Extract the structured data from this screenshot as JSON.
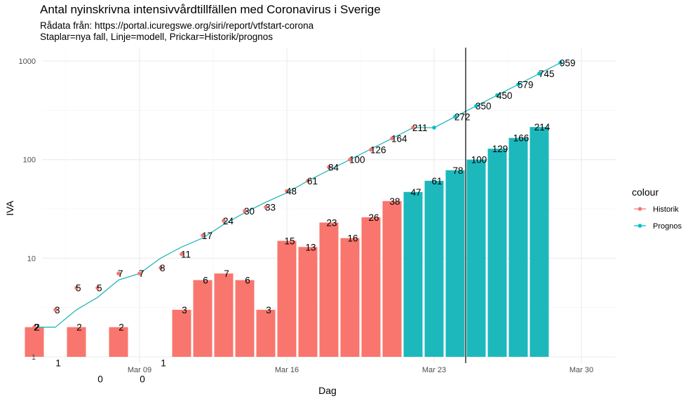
{
  "chart_data": {
    "type": "bar",
    "title": "Antal nyinskrivna intensivvårdtillfällen med Coronavirus i Sverige",
    "subtitle_lines": [
      "Rådata från: https://portal.icuregswe.org/siri/report/vtfstart-corona",
      "Staplar=nya fall, Linje=modell, Prickar=Historik/prognos"
    ],
    "xlabel": "Dag",
    "ylabel": "IVA",
    "y_scale": "log10",
    "ylim": [
      1,
      1000
    ],
    "y_ticks": [
      1,
      10,
      100,
      1000
    ],
    "y_tick_labels": [
      "1",
      "10",
      "100",
      "1000"
    ],
    "x_ticks": [
      "2020-03-09",
      "2020-03-16",
      "2020-03-23",
      "2020-03-30"
    ],
    "x_tick_labels": [
      "Mar 09",
      "Mar 16",
      "Mar 23",
      "Mar 30"
    ],
    "x_range": [
      "2020-03-03",
      "2020-03-31"
    ],
    "vline_date": "2020-03-25",
    "legend": {
      "title": "colour",
      "position": "right",
      "entries": [
        {
          "name": "Historik",
          "color": "#F8766D"
        },
        {
          "name": "Prognos",
          "color": "#00BFC4"
        }
      ]
    },
    "colors": {
      "historik": "#F8766D",
      "prognos": "#1CB8BC",
      "line": "#26B7BA"
    },
    "grid": true,
    "bars": [
      {
        "date": "2020-03-04",
        "value": 2,
        "label": "2",
        "series": "Historik"
      },
      {
        "date": "2020-03-05",
        "value": 1,
        "label": "1",
        "series": "Historik"
      },
      {
        "date": "2020-03-06",
        "value": 2,
        "label": "2",
        "series": "Historik"
      },
      {
        "date": "2020-03-07",
        "value": 0,
        "label": "0",
        "series": "Historik"
      },
      {
        "date": "2020-03-08",
        "value": 2,
        "label": "2",
        "series": "Historik"
      },
      {
        "date": "2020-03-09",
        "value": 0,
        "label": "0",
        "series": "Historik"
      },
      {
        "date": "2020-03-10",
        "value": 1,
        "label": "1",
        "series": "Historik"
      },
      {
        "date": "2020-03-11",
        "value": 3,
        "label": "3",
        "series": "Historik"
      },
      {
        "date": "2020-03-12",
        "value": 6,
        "label": "6",
        "series": "Historik"
      },
      {
        "date": "2020-03-13",
        "value": 7,
        "label": "7",
        "series": "Historik"
      },
      {
        "date": "2020-03-14",
        "value": 6,
        "label": "6",
        "series": "Historik"
      },
      {
        "date": "2020-03-15",
        "value": 3,
        "label": "3",
        "series": "Historik"
      },
      {
        "date": "2020-03-16",
        "value": 15,
        "label": "15",
        "series": "Historik"
      },
      {
        "date": "2020-03-17",
        "value": 13,
        "label": "13",
        "series": "Historik"
      },
      {
        "date": "2020-03-18",
        "value": 23,
        "label": "23",
        "series": "Historik"
      },
      {
        "date": "2020-03-19",
        "value": 16,
        "label": "16",
        "series": "Historik"
      },
      {
        "date": "2020-03-20",
        "value": 26,
        "label": "26",
        "series": "Historik"
      },
      {
        "date": "2020-03-21",
        "value": 38,
        "label": "38",
        "series": "Historik"
      },
      {
        "date": "2020-03-22",
        "value": 47,
        "label": "47",
        "series": "Prognos"
      },
      {
        "date": "2020-03-23",
        "value": 61,
        "label": "61",
        "series": "Prognos"
      },
      {
        "date": "2020-03-24",
        "value": 78,
        "label": "78",
        "series": "Prognos"
      },
      {
        "date": "2020-03-25",
        "value": 100,
        "label": "100",
        "series": "Prognos"
      },
      {
        "date": "2020-03-26",
        "value": 129,
        "label": "129",
        "series": "Prognos"
      },
      {
        "date": "2020-03-27",
        "value": 166,
        "label": "166",
        "series": "Prognos"
      },
      {
        "date": "2020-03-28",
        "value": 214,
        "label": "214",
        "series": "Prognos"
      }
    ],
    "points": [
      {
        "date": "2020-03-04",
        "value": 2,
        "label": "2",
        "series": "Historik"
      },
      {
        "date": "2020-03-05",
        "value": 3,
        "label": "3",
        "series": "Historik"
      },
      {
        "date": "2020-03-06",
        "value": 5,
        "label": "5",
        "series": "Historik"
      },
      {
        "date": "2020-03-07",
        "value": 5,
        "label": "5",
        "series": "Historik"
      },
      {
        "date": "2020-03-08",
        "value": 7,
        "label": "7",
        "series": "Historik"
      },
      {
        "date": "2020-03-09",
        "value": 7,
        "label": "7",
        "series": "Historik"
      },
      {
        "date": "2020-03-10",
        "value": 8,
        "label": "8",
        "series": "Historik"
      },
      {
        "date": "2020-03-11",
        "value": 11,
        "label": "11",
        "series": "Historik"
      },
      {
        "date": "2020-03-12",
        "value": 17,
        "label": "17",
        "series": "Historik"
      },
      {
        "date": "2020-03-13",
        "value": 24,
        "label": "24",
        "series": "Historik"
      },
      {
        "date": "2020-03-14",
        "value": 30,
        "label": "30",
        "series": "Historik"
      },
      {
        "date": "2020-03-15",
        "value": 33,
        "label": "33",
        "series": "Historik"
      },
      {
        "date": "2020-03-16",
        "value": 48,
        "label": "48",
        "series": "Historik"
      },
      {
        "date": "2020-03-17",
        "value": 61,
        "label": "61",
        "series": "Historik"
      },
      {
        "date": "2020-03-18",
        "value": 84,
        "label": "84",
        "series": "Historik"
      },
      {
        "date": "2020-03-19",
        "value": 100,
        "label": "100",
        "series": "Historik"
      },
      {
        "date": "2020-03-20",
        "value": 126,
        "label": "126",
        "series": "Historik"
      },
      {
        "date": "2020-03-21",
        "value": 164,
        "label": "164",
        "series": "Historik"
      },
      {
        "date": "2020-03-22",
        "value": 211,
        "label": "211",
        "series": "Historik"
      },
      {
        "date": "2020-03-23",
        "value": 211,
        "label": "",
        "series": "Prognos"
      },
      {
        "date": "2020-03-24",
        "value": 272,
        "label": "272",
        "series": "Prognos"
      },
      {
        "date": "2020-03-25",
        "value": 350,
        "label": "350",
        "series": "Prognos"
      },
      {
        "date": "2020-03-26",
        "value": 450,
        "label": "450",
        "series": "Prognos"
      },
      {
        "date": "2020-03-27",
        "value": 579,
        "label": "579",
        "series": "Prognos"
      },
      {
        "date": "2020-03-28",
        "value": 745,
        "label": "745",
        "series": "Prognos"
      },
      {
        "date": "2020-03-29",
        "value": 959,
        "label": "959",
        "series": "Prognos"
      }
    ],
    "model_line": [
      {
        "date": "2020-03-04",
        "value": 2
      },
      {
        "date": "2020-03-05",
        "value": 2
      },
      {
        "date": "2020-03-06",
        "value": 3
      },
      {
        "date": "2020-03-07",
        "value": 4
      },
      {
        "date": "2020-03-08",
        "value": 6
      },
      {
        "date": "2020-03-09",
        "value": 7
      },
      {
        "date": "2020-03-10",
        "value": 10
      },
      {
        "date": "2020-03-11",
        "value": 13
      },
      {
        "date": "2020-03-12",
        "value": 16
      },
      {
        "date": "2020-03-13",
        "value": 22
      },
      {
        "date": "2020-03-14",
        "value": 29
      },
      {
        "date": "2020-03-15",
        "value": 37
      },
      {
        "date": "2020-03-16",
        "value": 46
      },
      {
        "date": "2020-03-17",
        "value": 61
      },
      {
        "date": "2020-03-18",
        "value": 78
      },
      {
        "date": "2020-03-19",
        "value": 100
      },
      {
        "date": "2020-03-20",
        "value": 128
      },
      {
        "date": "2020-03-21",
        "value": 164
      },
      {
        "date": "2020-03-22",
        "value": 211
      },
      {
        "date": "2020-03-23",
        "value": 211
      },
      {
        "date": "2020-03-24",
        "value": 272
      },
      {
        "date": "2020-03-25",
        "value": 350
      },
      {
        "date": "2020-03-26",
        "value": 450
      },
      {
        "date": "2020-03-27",
        "value": 579
      },
      {
        "date": "2020-03-28",
        "value": 745
      },
      {
        "date": "2020-03-29",
        "value": 959
      }
    ]
  }
}
